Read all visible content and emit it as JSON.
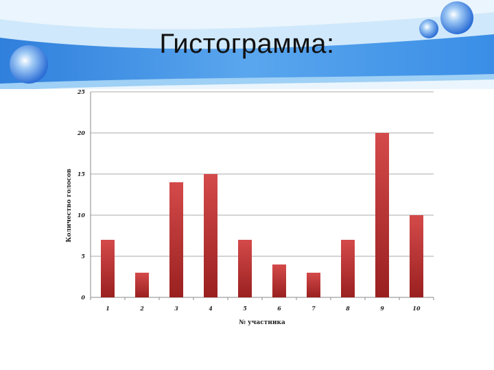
{
  "slide": {
    "title": "Гистограмма:"
  },
  "colors": {
    "bar_top": "#d44a4a",
    "bar_bottom": "#9a2020",
    "header_blue": "#3a8ee6",
    "header_light": "#9fd0f5"
  },
  "chart_data": {
    "type": "bar",
    "title": "",
    "categories": [
      "1",
      "2",
      "3",
      "4",
      "5",
      "6",
      "7",
      "8",
      "9",
      "10"
    ],
    "values": [
      7,
      3,
      14,
      15,
      7,
      4,
      3,
      7,
      20,
      10
    ],
    "xlabel": "№ участника",
    "ylabel": "Количество голосов",
    "ylim": [
      0,
      25
    ],
    "yticks": [
      "0",
      "5",
      "10",
      "15",
      "20",
      "25"
    ],
    "grid": true,
    "legend": "none"
  }
}
